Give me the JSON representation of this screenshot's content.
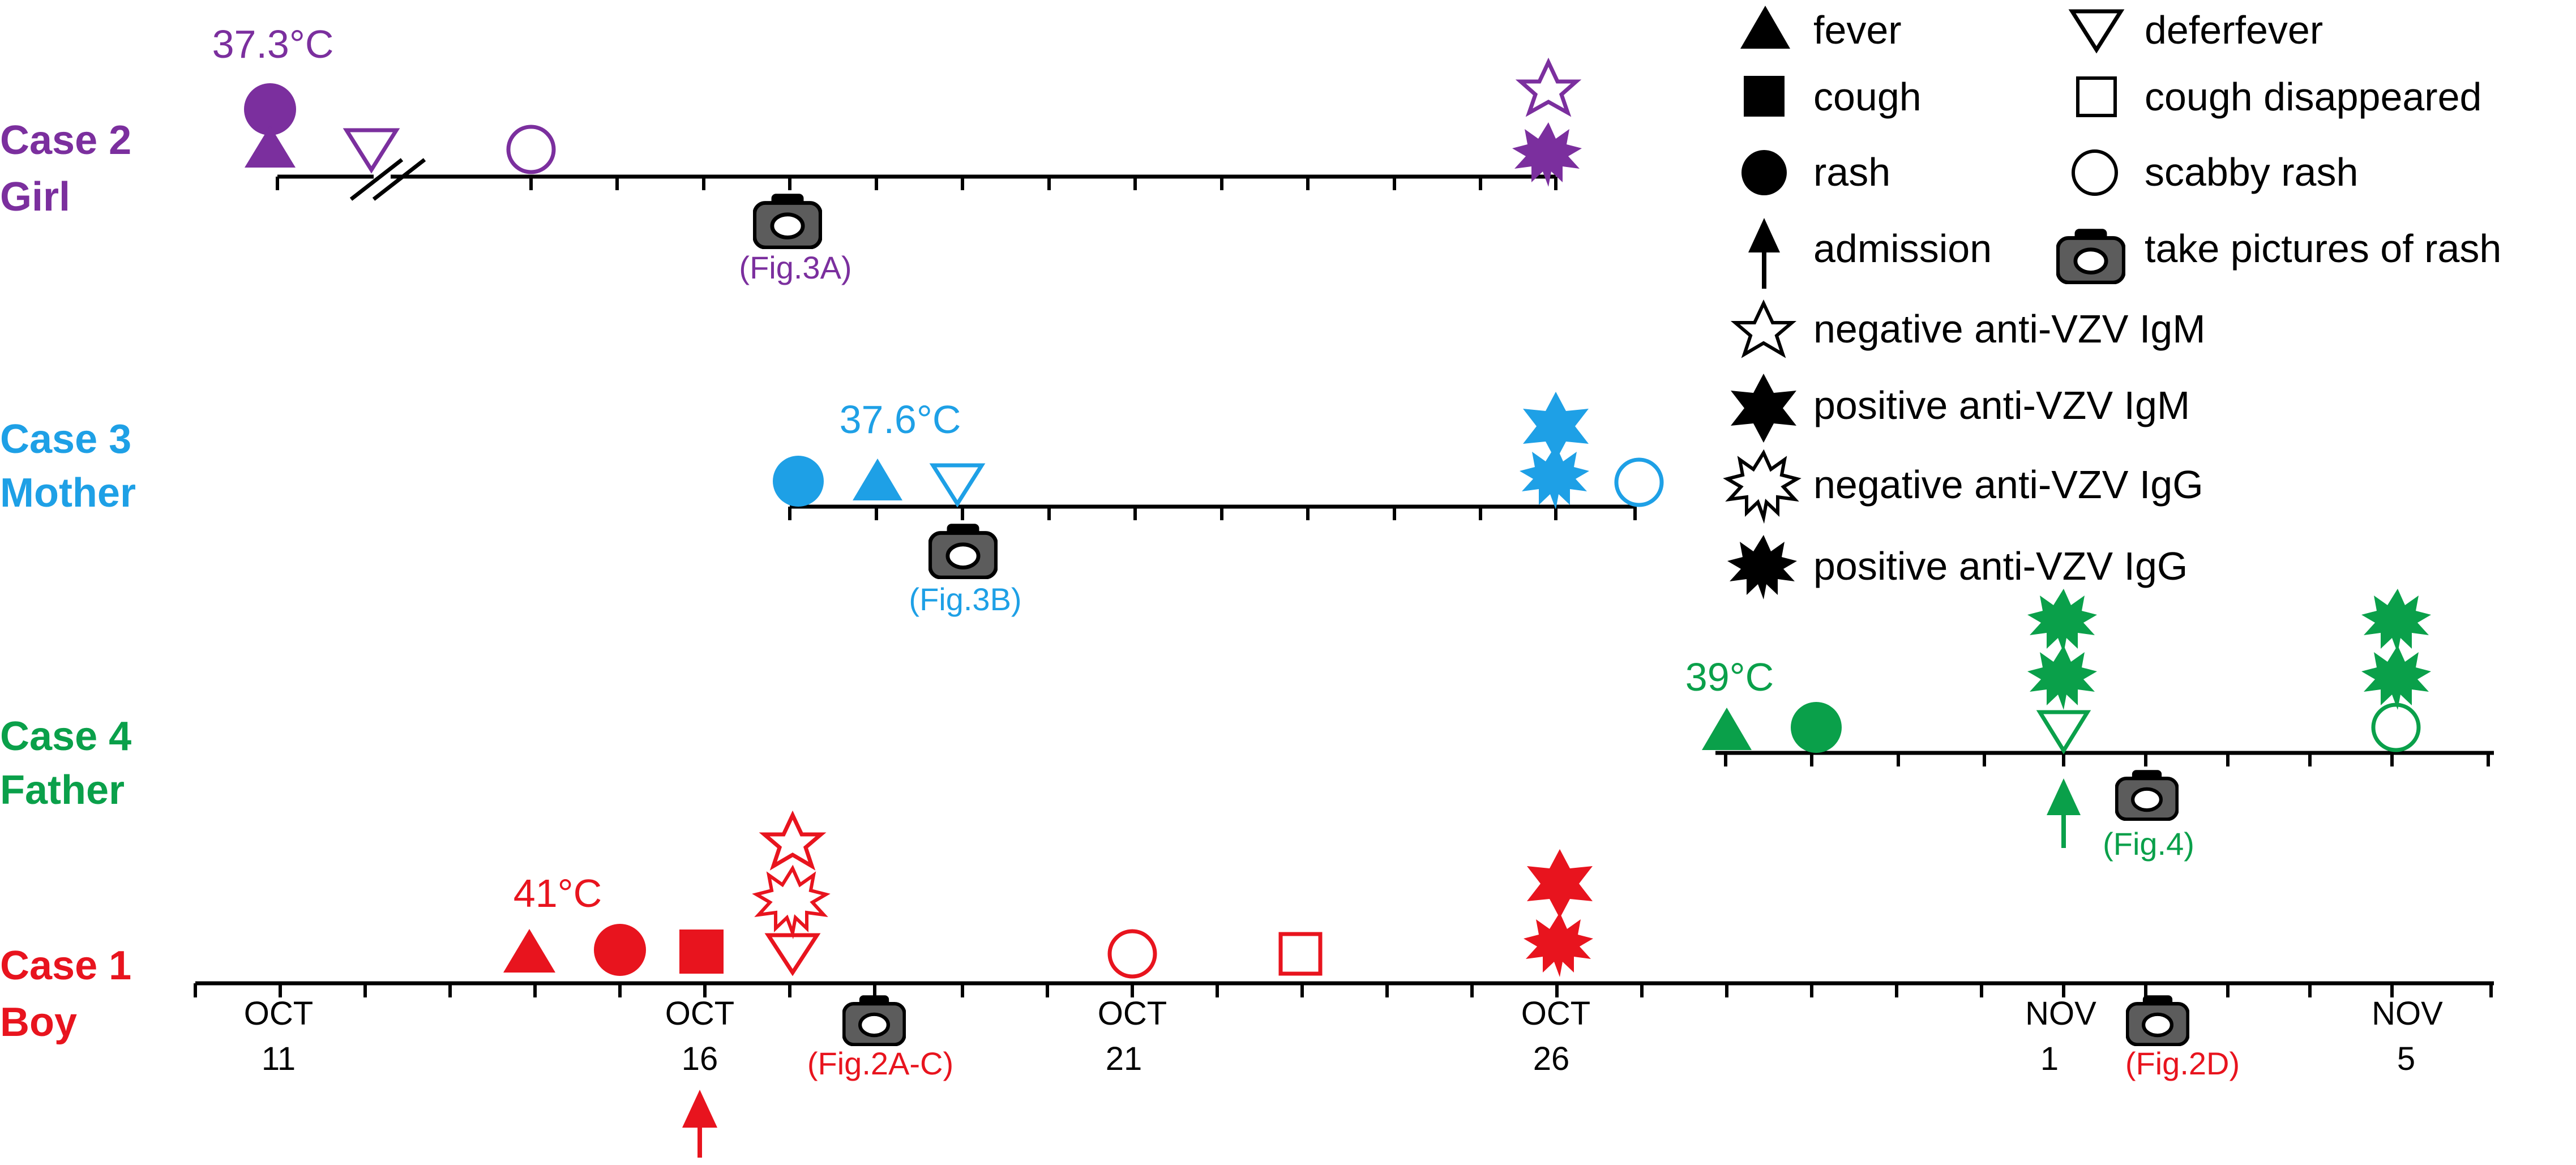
{
  "colors": {
    "case2": "#7b2f9e",
    "case3": "#1ea0e6",
    "case4": "#0aa04a",
    "case1": "#e8141e",
    "neutral": "#000000"
  },
  "cases": [
    {
      "key": "case2",
      "name": "Case 2",
      "relation": "Girl"
    },
    {
      "key": "case3",
      "name": "Case 3",
      "relation": "Mother"
    },
    {
      "key": "case4",
      "name": "Case 4",
      "relation": "Father"
    },
    {
      "key": "case1",
      "name": "Case 1",
      "relation": "Boy"
    }
  ],
  "temperatures": {
    "case2": "37.3°C",
    "case3": "37.6°C",
    "case4": "39°C",
    "case1": "41°C"
  },
  "photo_labels": {
    "case2": "(Fig.3A)",
    "case3": "(Fig.3B)",
    "case4": "(Fig.4)",
    "case1a": "(Fig.2A-C)",
    "case1b": "(Fig.2D)"
  },
  "axis": {
    "ticks": [
      {
        "month": "OCT",
        "day": "11"
      },
      {
        "month": "OCT",
        "day": "16"
      },
      {
        "month": "OCT",
        "day": "21"
      },
      {
        "month": "OCT",
        "day": "26"
      },
      {
        "month": "NOV",
        "day": "1"
      },
      {
        "month": "NOV",
        "day": "5"
      }
    ]
  },
  "legend": {
    "fever": "fever",
    "deferfever": "deferfever",
    "cough": "cough",
    "cough_gone": "cough disappeared",
    "rash": "rash",
    "scabby": "scabby rash",
    "admission": "admission",
    "camera": "take pictures of  rash",
    "neg_igm": "negative  anti-VZV IgM",
    "pos_igm": "positive  anti-VZV IgM",
    "neg_igg": "negative  anti-VZV IgG",
    "pos_igg": "positive  anti-VZV  IgG"
  }
}
